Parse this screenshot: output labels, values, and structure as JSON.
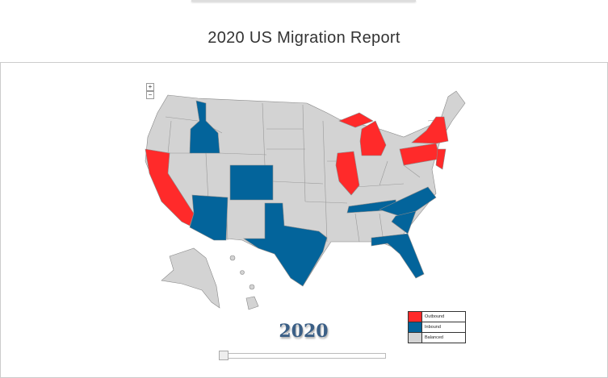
{
  "header": {
    "title": "2020 US Migration Report"
  },
  "map": {
    "zoom_in": "+",
    "zoom_out": "−",
    "year": "2020",
    "legend": [
      {
        "label": "Outbound",
        "color": "#ff2a2a"
      },
      {
        "label": "Inbound",
        "color": "#03649b"
      },
      {
        "label": "Balanced",
        "color": "#d3d3d3"
      }
    ]
  }
}
